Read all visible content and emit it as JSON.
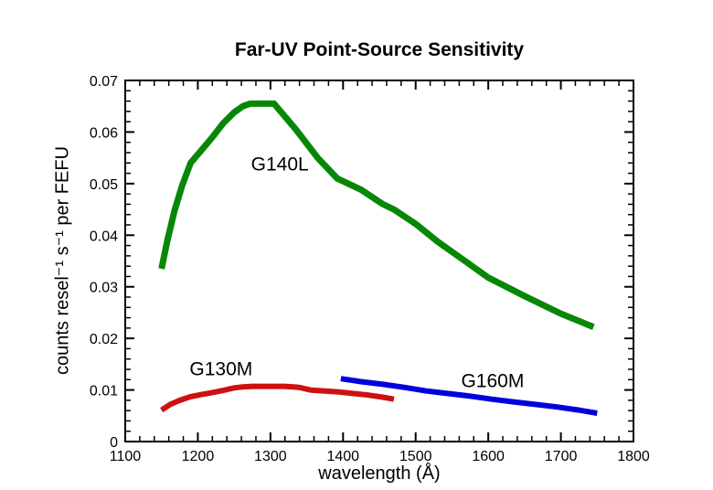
{
  "chart_data": {
    "type": "line",
    "title": "Far-UV Point-Source Sensitivity",
    "xlabel": "wavelength (Å)",
    "ylabel": "counts resel⁻¹ s⁻¹ per FEFU",
    "xlim": [
      1100,
      1800
    ],
    "ylim": [
      0,
      0.07
    ],
    "x_major_step": 100,
    "x_minor_step": 20,
    "y_major_step": 0.01,
    "y_minor_step": 0.002,
    "x_tick_labels": [
      "1100",
      "1200",
      "1300",
      "1400",
      "1500",
      "1600",
      "1700",
      "1800"
    ],
    "y_tick_labels": [
      "0",
      "0.01",
      "0.02",
      "0.03",
      "0.04",
      "0.05",
      "0.06",
      "0.07"
    ],
    "grid": false,
    "legend_position": "inline-curve-labels",
    "background_color": "#ffffff",
    "axis_color": "#000000",
    "series": [
      {
        "name": "G140L",
        "color": "#068806",
        "line_width": 7,
        "label_pos": {
          "x": 1313,
          "y": 0.054
        },
        "points": [
          [
            1150,
            0.0335
          ],
          [
            1158,
            0.039
          ],
          [
            1168,
            0.0448
          ],
          [
            1178,
            0.0495
          ],
          [
            1190,
            0.054
          ],
          [
            1205,
            0.0565
          ],
          [
            1220,
            0.059
          ],
          [
            1235,
            0.0617
          ],
          [
            1250,
            0.0638
          ],
          [
            1262,
            0.065
          ],
          [
            1272,
            0.0655
          ],
          [
            1305,
            0.0655
          ],
          [
            1335,
            0.0605
          ],
          [
            1365,
            0.055
          ],
          [
            1392,
            0.051
          ],
          [
            1425,
            0.0488
          ],
          [
            1455,
            0.046
          ],
          [
            1470,
            0.045
          ],
          [
            1500,
            0.0422
          ],
          [
            1530,
            0.0388
          ],
          [
            1565,
            0.0353
          ],
          [
            1600,
            0.0318
          ],
          [
            1650,
            0.0282
          ],
          [
            1700,
            0.0248
          ],
          [
            1745,
            0.0222
          ]
        ]
      },
      {
        "name": "G130M",
        "color": "#ce1010",
        "line_width": 6,
        "label_pos": {
          "x": 1232,
          "y": 0.0143
        },
        "points": [
          [
            1150,
            0.0061
          ],
          [
            1162,
            0.0072
          ],
          [
            1175,
            0.008
          ],
          [
            1190,
            0.0087
          ],
          [
            1205,
            0.0091
          ],
          [
            1220,
            0.0095
          ],
          [
            1235,
            0.0099
          ],
          [
            1250,
            0.0104
          ],
          [
            1262,
            0.0106
          ],
          [
            1275,
            0.0107
          ],
          [
            1300,
            0.0107
          ],
          [
            1320,
            0.0107
          ],
          [
            1340,
            0.0105
          ],
          [
            1355,
            0.01
          ],
          [
            1375,
            0.0098
          ],
          [
            1395,
            0.0096
          ],
          [
            1415,
            0.0093
          ],
          [
            1435,
            0.009
          ],
          [
            1455,
            0.0086
          ],
          [
            1470,
            0.0082
          ]
        ]
      },
      {
        "name": "G160M",
        "color": "#0000dd",
        "line_width": 6,
        "label_pos": {
          "x": 1606,
          "y": 0.012
        },
        "points": [
          [
            1397,
            0.0122
          ],
          [
            1425,
            0.0116
          ],
          [
            1455,
            0.0111
          ],
          [
            1485,
            0.0105
          ],
          [
            1515,
            0.0098
          ],
          [
            1545,
            0.0093
          ],
          [
            1575,
            0.0088
          ],
          [
            1605,
            0.0082
          ],
          [
            1635,
            0.0077
          ],
          [
            1665,
            0.0072
          ],
          [
            1695,
            0.0067
          ],
          [
            1725,
            0.0061
          ],
          [
            1750,
            0.0055
          ]
        ]
      }
    ]
  }
}
